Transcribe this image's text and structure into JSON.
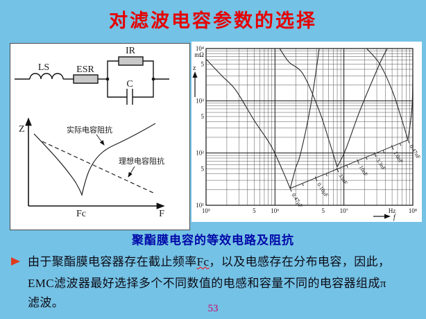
{
  "title": "对滤波电容参数的选择",
  "caption": "聚酯膜电容的等效电路及阻抗",
  "body": {
    "line1_pre": "由于聚酯膜电容器存在截止频率",
    "line1_fc": "Fc",
    "line1_post": "，以及电感存在分布电容，因此，",
    "line2": "EMC滤波器最好选择多个不同数值的电感和容量不同的电容器组成π",
    "line3": "滤波。"
  },
  "page_number": "53",
  "colors": {
    "background": "#74C2E5",
    "title": "#E60000",
    "caption": "#0008A8",
    "page_number": "#CC0066",
    "bullet": "#E03A1E",
    "resistor_fill": "#C9C9C9"
  },
  "circuit": {
    "inductor_label": "LS",
    "esr_label": "ESR",
    "ir_label": "IR",
    "cap_label": "C"
  },
  "sketch": {
    "y_label": "Z",
    "x_label": "F",
    "fc_label": "Fc",
    "actual_label": "实际电容阻抗",
    "ideal_label": "理想电容阻抗"
  },
  "chart_data": {
    "type": "line",
    "title": "",
    "xlabel": "f",
    "ylabel": "z",
    "x_axis": {
      "scale": "log",
      "min": 100000,
      "max": 100000000,
      "unit": "Hz",
      "ticks": [
        {
          "label": "10⁵",
          "f": 100000
        },
        {
          "label": "5",
          "f": 500000
        },
        {
          "label": "10⁶",
          "f": 1000000
        },
        {
          "label": "5",
          "f": 5000000
        },
        {
          "label": "10⁷",
          "f": 10000000
        },
        {
          "label": "Hz",
          "f": 50000000
        },
        {
          "label": "10⁸",
          "f": 100000000
        }
      ]
    },
    "y_axis": {
      "scale": "log",
      "min": 10,
      "max": 10000,
      "unit": "mΩ",
      "ticks": [
        {
          "label": "10⁴",
          "z": 10000
        },
        {
          "label": "mΩ",
          "z": 7600
        },
        {
          "label": "5",
          "z": 5000
        },
        {
          "label": "10³",
          "z": 1000
        },
        {
          "label": "5",
          "z": 500
        },
        {
          "label": "10²",
          "z": 100
        },
        {
          "label": "5",
          "z": 50
        },
        {
          "label": "10¹",
          "z": 10
        }
      ]
    },
    "series": [
      {
        "name": "0.47μF",
        "dip": 1660000,
        "points": [
          [
            100000,
            6300
          ],
          [
            170000,
            3000
          ],
          [
            270000,
            1600
          ],
          [
            500000,
            420
          ],
          [
            870000,
            140
          ],
          [
            1300000,
            45
          ],
          [
            1660000,
            21
          ],
          [
            2000000,
            52
          ],
          [
            2340000,
            95
          ],
          [
            3200000,
            650
          ],
          [
            4000000,
            4200
          ],
          [
            4370000,
            10000
          ]
        ]
      },
      {
        "name": "33nF",
        "dip": 8000000,
        "points": [
          [
            1170000,
            10000
          ],
          [
            1600000,
            5500
          ],
          [
            2570000,
            3200
          ],
          [
            4400000,
            640
          ],
          [
            6200000,
            160
          ],
          [
            8000000,
            54
          ],
          [
            10700000,
            120
          ],
          [
            17000000,
            640
          ],
          [
            33000000,
            5100
          ],
          [
            42700000,
            10000
          ]
        ]
      },
      {
        "name": "0.47nF",
        "dip": 85000000,
        "points": [
          [
            21400000,
            10000
          ],
          [
            33000000,
            5100
          ],
          [
            50000000,
            1600
          ],
          [
            68000000,
            470
          ],
          [
            85000000,
            178
          ],
          [
            98000000,
            870
          ],
          [
            100000000,
            10000
          ]
        ]
      }
    ],
    "ruler": {
      "line": [
        [
          1660000,
          21
        ],
        [
          85000000,
          178
        ]
      ],
      "labels": [
        {
          "text": "0.47μF",
          "f": 1660000
        },
        {
          "text": "0.10μF",
          "f": 3900000
        },
        {
          "text": "33nF",
          "f": 8000000
        },
        {
          "text": "10nF",
          "f": 15800000
        },
        {
          "text": "3.3nF",
          "f": 28000000
        },
        {
          "text": "1.0nF",
          "f": 50000000
        },
        {
          "text": "0.47nF",
          "f": 85000000
        }
      ],
      "minor_ticks": [
        2500000,
        5500000,
        11000000,
        21000000,
        37000000,
        65000000
      ]
    },
    "legend": "none",
    "grid": "log-log minor 2-9 per decade"
  }
}
